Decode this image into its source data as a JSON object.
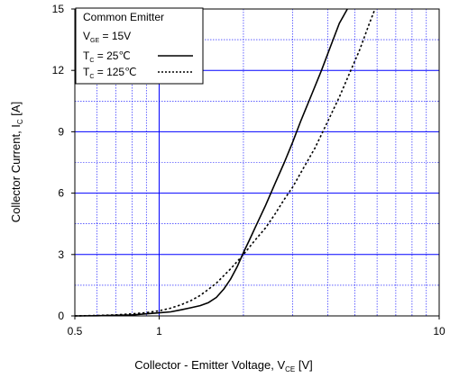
{
  "chart_data": {
    "type": "line",
    "xscale": "log",
    "xlim": [
      0.5,
      10
    ],
    "ylim": [
      0,
      15
    ],
    "x_ticks": [
      0.5,
      1,
      10
    ],
    "x_tick_labels": [
      "0.5",
      "1",
      "10"
    ],
    "y_ticks": [
      0,
      3,
      6,
      9,
      12,
      15
    ],
    "y_tick_labels": [
      "0",
      "3",
      "6",
      "9",
      "12",
      "15"
    ],
    "xlabel": {
      "main": "Collector - Emitter Voltage, V",
      "sub": "CE",
      "unit": " [V]"
    },
    "ylabel": {
      "main": "Collector Current, I",
      "sub": "C",
      "unit": " [A]"
    },
    "grid": true,
    "grid_color": "#0000ff",
    "legend": {
      "placement": "top-left",
      "title": "Common Emitter",
      "condition": {
        "main": "V",
        "sub": "GE",
        "rest": " = 15V"
      }
    },
    "series": [
      {
        "name": "25℃",
        "legend_text": {
          "main": "T",
          "sub": "C",
          "rest": " =   25℃"
        },
        "style": "solid",
        "x": [
          0.5,
          0.6,
          0.7,
          0.8,
          0.9,
          1.0,
          1.1,
          1.2,
          1.3,
          1.4,
          1.5,
          1.6,
          1.7,
          1.8,
          1.9,
          2.0,
          2.1,
          2.2,
          2.4,
          2.6,
          2.8,
          3.0,
          3.2,
          3.5,
          3.8,
          4.1,
          4.4,
          4.7
        ],
        "values": [
          0,
          0.01,
          0.03,
          0.05,
          0.1,
          0.15,
          0.2,
          0.3,
          0.4,
          0.5,
          0.65,
          0.9,
          1.3,
          1.8,
          2.4,
          3.1,
          3.7,
          4.3,
          5.4,
          6.5,
          7.5,
          8.5,
          9.5,
          10.8,
          12.0,
          13.2,
          14.3,
          15.0
        ]
      },
      {
        "name": "125℃",
        "legend_text": {
          "main": "T",
          "sub": "C",
          "rest": " = 125℃"
        },
        "style": "dotted",
        "x": [
          0.5,
          0.6,
          0.7,
          0.8,
          0.9,
          1.0,
          1.1,
          1.2,
          1.3,
          1.4,
          1.5,
          1.6,
          1.8,
          2.0,
          2.2,
          2.4,
          2.6,
          2.8,
          3.0,
          3.3,
          3.6,
          4.0,
          4.4,
          4.8,
          5.2,
          5.6,
          5.9
        ],
        "values": [
          0,
          0.02,
          0.05,
          0.1,
          0.16,
          0.25,
          0.38,
          0.55,
          0.75,
          1.0,
          1.3,
          1.6,
          2.3,
          3.0,
          3.7,
          4.3,
          5.0,
          5.7,
          6.3,
          7.3,
          8.2,
          9.5,
          10.7,
          11.9,
          13.0,
          14.2,
          15.0
        ]
      }
    ]
  }
}
